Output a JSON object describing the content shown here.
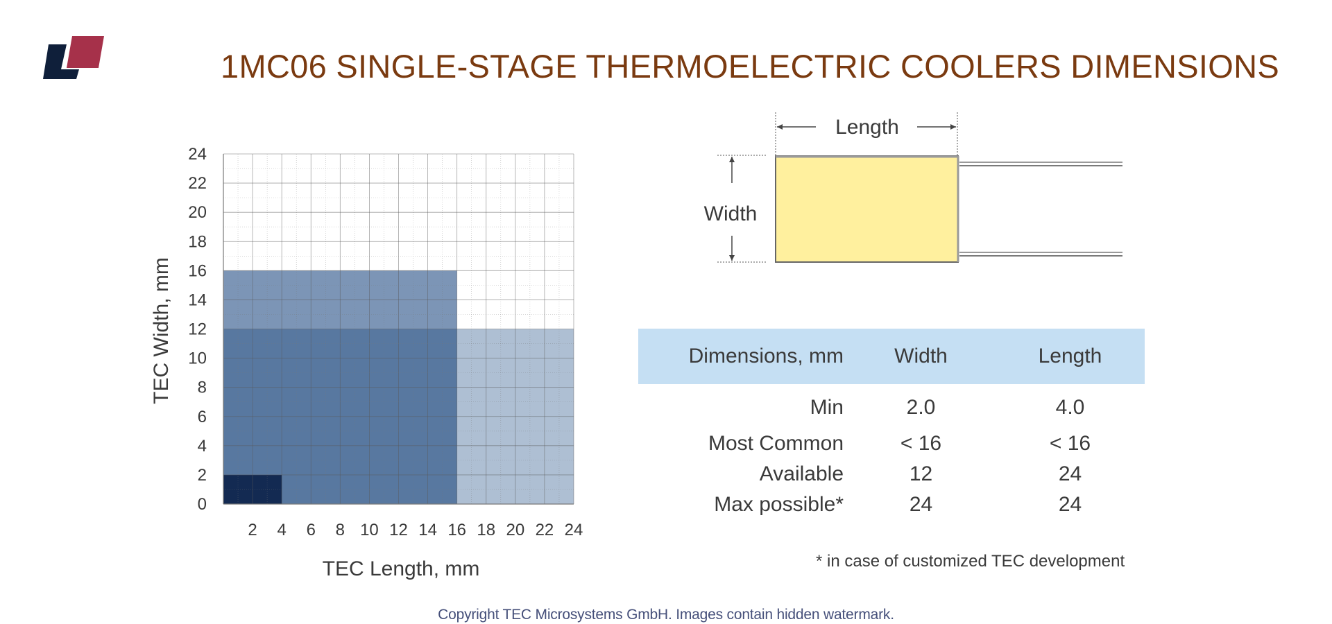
{
  "title": "1MC06 SINGLE-STAGE THERMOELECTRIC COOLERS DIMENSIONS",
  "logo_colors": {
    "dark": "#0f1f3a",
    "accent": "#a6314a"
  },
  "chart_data": {
    "type": "area",
    "xlabel": "TEC Length, mm",
    "ylabel": "TEC Width, mm",
    "xlim": [
      0,
      24
    ],
    "ylim": [
      0,
      24
    ],
    "xticks": [
      2,
      4,
      6,
      8,
      10,
      12,
      14,
      16,
      18,
      20,
      22,
      24
    ],
    "yticks": [
      0,
      2,
      4,
      6,
      8,
      10,
      12,
      14,
      16,
      18,
      20,
      22,
      24
    ],
    "grid": true,
    "regions": [
      {
        "x": [
          0,
          24
        ],
        "y": [
          0,
          12
        ],
        "color": "#aebfd3"
      },
      {
        "x": [
          0,
          16
        ],
        "y": [
          0,
          16
        ],
        "color": "#7c95b6"
      },
      {
        "x": [
          0,
          16
        ],
        "y": [
          0,
          12
        ],
        "color": "#5878a0"
      },
      {
        "x": [
          0,
          4
        ],
        "y": [
          0,
          2
        ],
        "color": "#132a52"
      }
    ]
  },
  "diagram": {
    "length_label": "Length",
    "width_label": "Width",
    "fill_color": "#fff09e"
  },
  "table": {
    "headers": [
      "Dimensions, mm",
      "Width",
      "Length"
    ],
    "header_bg": "#c5dff3",
    "rows": [
      {
        "label": "Min",
        "width": "2.0",
        "length": "4.0"
      },
      {
        "label": "Most Common",
        "width": "< 16",
        "length": "< 16"
      },
      {
        "label": "Available",
        "width": "12",
        "length": "24"
      },
      {
        "label": "Max possible*",
        "width": "24",
        "length": "24"
      }
    ]
  },
  "footnote": "* in case of customized TEC development",
  "copyright": "Copyright TEC Microsystems GmbH. Images contain hidden watermark."
}
